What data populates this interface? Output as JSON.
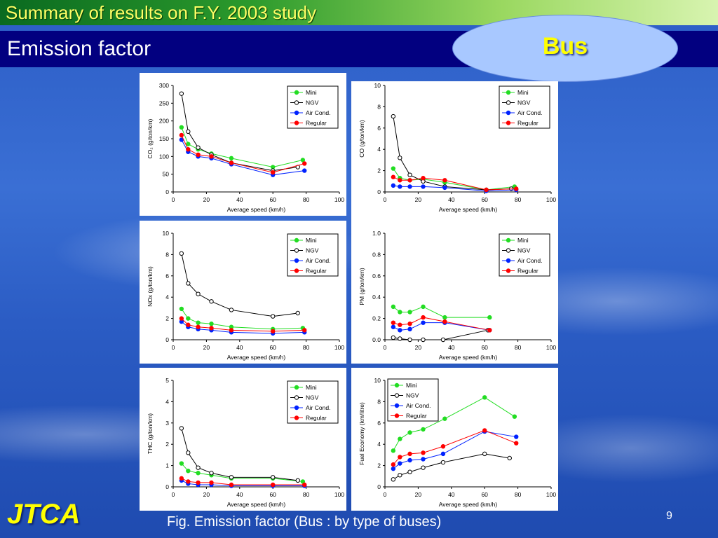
{
  "header": {
    "top_title": "Summary of results on F.Y. 2003 study",
    "slide_title": "Emission factor",
    "badge": "Bus"
  },
  "footer": {
    "logo": "JTCA",
    "caption": "Fig. Emission factor (Bus : by type of buses)",
    "page_number": "9"
  },
  "colors": {
    "Mini": "#22dd22",
    "NGV": "#000000",
    "Air Cond.": "#0022ff",
    "Regular": "#ff0000"
  },
  "chart_data": [
    {
      "type": "line",
      "xlabel": "Average speed (km/h)",
      "ylabel": "CO₂ (g/ton/km)",
      "xlim": [
        0,
        100
      ],
      "xticks": [
        0,
        20,
        40,
        60,
        80,
        100
      ],
      "ylim": [
        0,
        300
      ],
      "yticks": [
        0,
        50,
        100,
        150,
        200,
        250,
        300
      ],
      "ytick_labels": [
        "0",
        "50",
        "100",
        "150",
        "200",
        "250",
        "300"
      ],
      "legend": "top-right",
      "series": [
        {
          "name": "Mini",
          "x": [
            5,
            9,
            15,
            23,
            35,
            60,
            78
          ],
          "y": [
            182,
            135,
            120,
            108,
            95,
            70,
            90
          ]
        },
        {
          "name": "NGV",
          "x": [
            5,
            9,
            15,
            23,
            35,
            60,
            75
          ],
          "y": [
            277,
            170,
            125,
            105,
            82,
            60,
            70
          ]
        },
        {
          "name": "Air Cond.",
          "x": [
            5,
            9,
            15,
            23,
            35,
            60,
            79
          ],
          "y": [
            147,
            113,
            100,
            95,
            78,
            48,
            60
          ]
        },
        {
          "name": "Regular",
          "x": [
            5,
            9,
            15,
            23,
            35,
            60,
            79
          ],
          "y": [
            160,
            120,
            105,
            100,
            82,
            55,
            80
          ]
        }
      ]
    },
    {
      "type": "line",
      "xlabel": "Average speed (km/h)",
      "ylabel": "CO (g/ton/km)",
      "xlim": [
        0,
        100
      ],
      "xticks": [
        0,
        20,
        40,
        60,
        80,
        100
      ],
      "ylim": [
        0,
        10
      ],
      "yticks": [
        0,
        2,
        4,
        6,
        8,
        10
      ],
      "ytick_labels": [
        "0",
        "2",
        "4",
        "6",
        "8",
        "10"
      ],
      "legend": "top-right",
      "series": [
        {
          "name": "Mini",
          "x": [
            5,
            9,
            15,
            23,
            36,
            61,
            78
          ],
          "y": [
            2.2,
            1.3,
            1.1,
            1.2,
            0.9,
            0.2,
            0.5
          ]
        },
        {
          "name": "NGV",
          "x": [
            5,
            9,
            15,
            23,
            36,
            61,
            76
          ],
          "y": [
            7.1,
            3.2,
            1.6,
            1.0,
            0.5,
            0.2,
            0.3
          ]
        },
        {
          "name": "Air Cond.",
          "x": [
            5,
            9,
            15,
            23,
            36,
            61,
            79
          ],
          "y": [
            0.6,
            0.5,
            0.5,
            0.5,
            0.4,
            0.1,
            0.2
          ]
        },
        {
          "name": "Regular",
          "x": [
            5,
            9,
            15,
            23,
            36,
            61,
            79
          ],
          "y": [
            1.4,
            1.1,
            1.1,
            1.3,
            1.1,
            0.2,
            0.3
          ]
        }
      ]
    },
    {
      "type": "line",
      "xlabel": "Average speed (km/h)",
      "ylabel": "NOx (g/ton/km)",
      "xlim": [
        0,
        100
      ],
      "xticks": [
        0,
        20,
        40,
        60,
        80,
        100
      ],
      "ylim": [
        0,
        10
      ],
      "yticks": [
        0,
        2,
        4,
        6,
        8,
        10
      ],
      "ytick_labels": [
        "0",
        "2",
        "4",
        "6",
        "8",
        "10"
      ],
      "legend": "top-right",
      "series": [
        {
          "name": "Mini",
          "x": [
            5,
            9,
            15,
            23,
            35,
            60,
            78
          ],
          "y": [
            2.9,
            2.0,
            1.6,
            1.5,
            1.2,
            1.0,
            1.1
          ]
        },
        {
          "name": "NGV",
          "x": [
            5,
            9,
            15,
            23,
            35,
            60,
            75
          ],
          "y": [
            8.1,
            5.3,
            4.3,
            3.6,
            2.8,
            2.2,
            2.5
          ]
        },
        {
          "name": "Air Cond.",
          "x": [
            5,
            9,
            15,
            23,
            35,
            60,
            79
          ],
          "y": [
            1.7,
            1.2,
            1.0,
            0.9,
            0.7,
            0.6,
            0.7
          ]
        },
        {
          "name": "Regular",
          "x": [
            5,
            9,
            15,
            23,
            35,
            60,
            79
          ],
          "y": [
            2.0,
            1.4,
            1.2,
            1.1,
            0.9,
            0.8,
            0.9
          ]
        }
      ]
    },
    {
      "type": "line",
      "xlabel": "Average speed (km/h)",
      "ylabel": "PM (g/ton/km)",
      "xlim": [
        0,
        100
      ],
      "xticks": [
        0,
        20,
        40,
        60,
        80,
        100
      ],
      "ylim": [
        0,
        1
      ],
      "yticks": [
        0,
        0.2,
        0.4,
        0.6,
        0.8,
        1.0
      ],
      "ytick_labels": [
        "0.0",
        "0.2",
        "0.4",
        "0.6",
        "0.8",
        "1.0"
      ],
      "legend": "top-right",
      "series": [
        {
          "name": "Mini",
          "x": [
            5,
            9,
            15,
            23,
            36,
            63
          ],
          "y": [
            0.31,
            0.26,
            0.26,
            0.31,
            0.21,
            0.21
          ]
        },
        {
          "name": "NGV",
          "x": [
            5,
            9,
            15,
            23,
            35,
            62
          ],
          "y": [
            0.02,
            0.01,
            0.0,
            0.0,
            0.0,
            0.09
          ]
        },
        {
          "name": "Air Cond.",
          "x": [
            5,
            9,
            15,
            23,
            36,
            63
          ],
          "y": [
            0.12,
            0.09,
            0.1,
            0.16,
            0.16,
            0.09
          ]
        },
        {
          "name": "Regular",
          "x": [
            5,
            9,
            15,
            23,
            36,
            63
          ],
          "y": [
            0.16,
            0.14,
            0.15,
            0.21,
            0.17,
            0.09
          ]
        }
      ]
    },
    {
      "type": "line",
      "xlabel": "Average speed (km/h)",
      "ylabel": "THC (g/ton/km)",
      "xlim": [
        0,
        100
      ],
      "xticks": [
        0,
        20,
        40,
        60,
        80,
        100
      ],
      "ylim": [
        0,
        5
      ],
      "yticks": [
        0,
        1,
        2,
        3,
        4,
        5
      ],
      "ytick_labels": [
        "0",
        "1",
        "2",
        "3",
        "4",
        "5"
      ],
      "legend": "top-right",
      "series": [
        {
          "name": "Mini",
          "x": [
            5,
            9,
            15,
            23,
            35,
            60,
            78
          ],
          "y": [
            1.1,
            0.75,
            0.65,
            0.55,
            0.4,
            0.4,
            0.25
          ]
        },
        {
          "name": "NGV",
          "x": [
            5,
            9,
            15,
            23,
            35,
            60,
            75
          ],
          "y": [
            2.75,
            1.6,
            0.9,
            0.65,
            0.45,
            0.45,
            0.3
          ]
        },
        {
          "name": "Air Cond.",
          "x": [
            5,
            9,
            15,
            23,
            35,
            60,
            79
          ],
          "y": [
            0.3,
            0.15,
            0.1,
            0.1,
            0.05,
            0.05,
            0.05
          ]
        },
        {
          "name": "Regular",
          "x": [
            5,
            9,
            15,
            23,
            35,
            60,
            79
          ],
          "y": [
            0.4,
            0.25,
            0.2,
            0.2,
            0.1,
            0.1,
            0.1
          ]
        }
      ]
    },
    {
      "type": "line",
      "xlabel": "Average speed (km/h)",
      "ylabel": "Fuel Economy (km/litre)",
      "xlim": [
        0,
        100
      ],
      "xticks": [
        0,
        20,
        40,
        60,
        80,
        100
      ],
      "ylim": [
        0,
        10
      ],
      "yticks": [
        0,
        2,
        4,
        6,
        8,
        10
      ],
      "ytick_labels": [
        "0",
        "2",
        "4",
        "6",
        "8",
        "10"
      ],
      "legend": "top-left",
      "series": [
        {
          "name": "Mini",
          "x": [
            5,
            9,
            15,
            23,
            36,
            60,
            78
          ],
          "y": [
            3.4,
            4.5,
            5.1,
            5.4,
            6.4,
            8.4,
            6.6
          ]
        },
        {
          "name": "NGV",
          "x": [
            5,
            9,
            15,
            23,
            35,
            60,
            75
          ],
          "y": [
            0.7,
            1.1,
            1.4,
            1.8,
            2.3,
            3.1,
            2.7
          ]
        },
        {
          "name": "Air Cond.",
          "x": [
            5,
            9,
            15,
            23,
            35,
            60,
            79
          ],
          "y": [
            1.7,
            2.2,
            2.5,
            2.6,
            3.1,
            5.2,
            4.7
          ]
        },
        {
          "name": "Regular",
          "x": [
            5,
            9,
            15,
            23,
            35,
            60,
            79
          ],
          "y": [
            2.1,
            2.8,
            3.1,
            3.2,
            3.8,
            5.3,
            4.1
          ]
        }
      ]
    }
  ]
}
